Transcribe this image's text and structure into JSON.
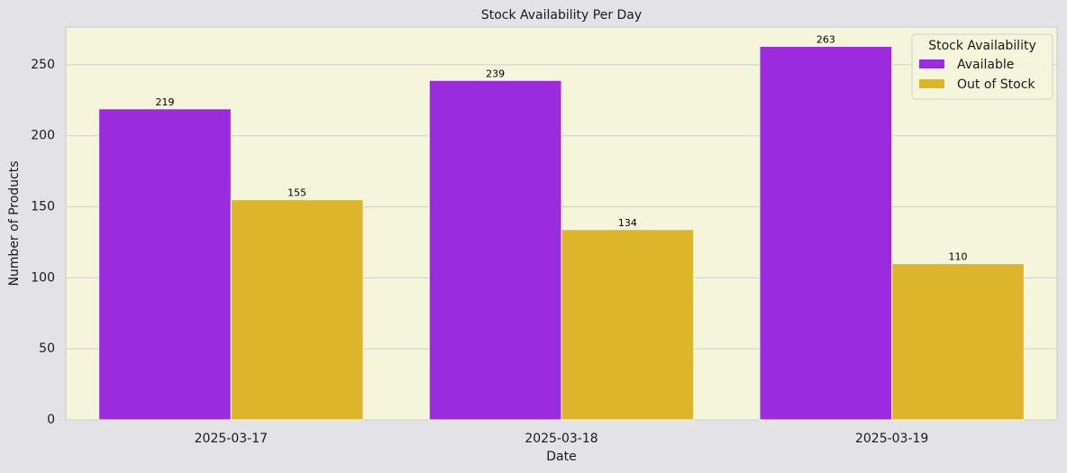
{
  "chart_data": {
    "type": "bar",
    "title": "Stock Availability Per Day",
    "xlabel": "Date",
    "ylabel": "Number of Products",
    "categories": [
      "2025-03-17",
      "2025-03-18",
      "2025-03-19"
    ],
    "series": [
      {
        "name": "Available",
        "color": "#9b2bde",
        "values": [
          219,
          239,
          263
        ]
      },
      {
        "name": "Out of Stock",
        "color": "#ddb52a",
        "values": [
          155,
          134,
          110
        ]
      }
    ],
    "ylim": [
      0,
      276.6
    ],
    "yticks": [
      0,
      50,
      100,
      150,
      200,
      250
    ],
    "grid": true,
    "legend_title": "Stock Availability",
    "legend_position": "upper right",
    "data_labels": true
  }
}
